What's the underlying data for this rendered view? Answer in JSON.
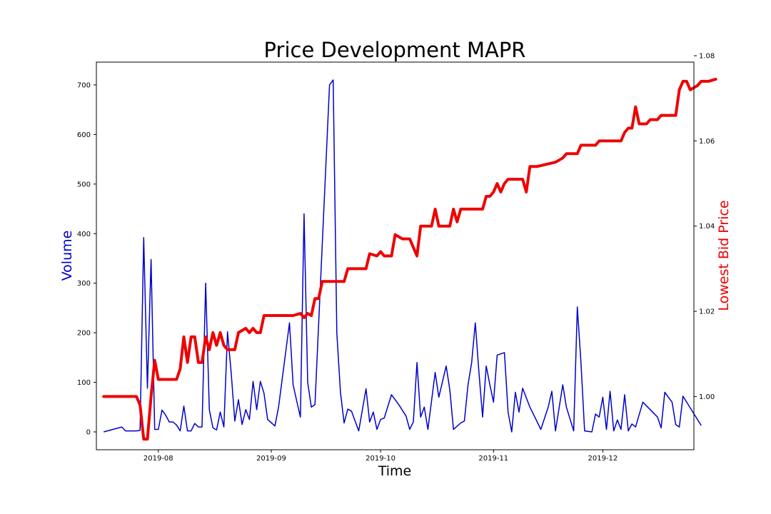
{
  "chart_data": {
    "type": "line",
    "title": "Price Development MAPR",
    "xlabel": "Time",
    "ylabel_left": "Volume",
    "ylabel_right": "Lowest Bid Price",
    "grid": false,
    "x_range": [
      "2019-07-15",
      "2019-12-26"
    ],
    "x_ticks": [
      "2019-08",
      "2019-09",
      "2019-10",
      "2019-11",
      "2019-12"
    ],
    "y_left": {
      "lim": [
        -36,
        746
      ],
      "ticks": [
        0,
        100,
        200,
        300,
        400,
        500,
        600,
        700
      ]
    },
    "y_right": {
      "lim": [
        0.9875,
        1.0785
      ],
      "ticks": [
        1.0,
        1.02,
        1.04,
        1.06,
        1.08
      ],
      "tick_labels": [
        "1.00",
        "1.02",
        "1.04",
        "1.06",
        "1.08"
      ]
    },
    "series": [
      {
        "name": "Volume",
        "axis": "left",
        "color": "#0000cc",
        "points": [
          [
            "2019-07-17",
            0
          ],
          [
            "2019-07-22",
            10
          ],
          [
            "2019-07-23",
            2
          ],
          [
            "2019-07-26",
            2
          ],
          [
            "2019-07-27",
            3
          ],
          [
            "2019-07-28",
            392
          ],
          [
            "2019-07-29",
            88
          ],
          [
            "2019-07-30",
            348
          ],
          [
            "2019-07-31",
            5
          ],
          [
            "2019-08-01",
            5
          ],
          [
            "2019-08-02",
            44
          ],
          [
            "2019-08-03",
            34
          ],
          [
            "2019-08-04",
            20
          ],
          [
            "2019-08-05",
            20
          ],
          [
            "2019-08-06",
            14
          ],
          [
            "2019-08-07",
            2
          ],
          [
            "2019-08-08",
            52
          ],
          [
            "2019-08-09",
            2
          ],
          [
            "2019-08-10",
            2
          ],
          [
            "2019-08-11",
            17
          ],
          [
            "2019-08-12",
            10
          ],
          [
            "2019-08-13",
            10
          ],
          [
            "2019-08-14",
            300
          ],
          [
            "2019-08-15",
            45
          ],
          [
            "2019-08-16",
            8
          ],
          [
            "2019-08-17",
            4
          ],
          [
            "2019-08-18",
            40
          ],
          [
            "2019-08-19",
            10
          ],
          [
            "2019-08-20",
            202
          ],
          [
            "2019-08-21",
            120
          ],
          [
            "2019-08-22",
            22
          ],
          [
            "2019-08-23",
            65
          ],
          [
            "2019-08-24",
            15
          ],
          [
            "2019-08-25",
            45
          ],
          [
            "2019-08-26",
            25
          ],
          [
            "2019-08-27",
            102
          ],
          [
            "2019-08-28",
            45
          ],
          [
            "2019-08-29",
            102
          ],
          [
            "2019-08-30",
            78
          ],
          [
            "2019-08-31",
            25
          ],
          [
            "2019-09-02",
            12
          ],
          [
            "2019-09-03",
            50
          ],
          [
            "2019-09-06",
            220
          ],
          [
            "2019-09-07",
            95
          ],
          [
            "2019-09-08",
            62
          ],
          [
            "2019-09-09",
            30
          ],
          [
            "2019-09-10",
            440
          ],
          [
            "2019-09-11",
            100
          ],
          [
            "2019-09-12",
            50
          ],
          [
            "2019-09-13",
            55
          ],
          [
            "2019-09-17",
            700
          ],
          [
            "2019-09-18",
            710
          ],
          [
            "2019-09-19",
            200
          ],
          [
            "2019-09-20",
            80
          ],
          [
            "2019-09-21",
            18
          ],
          [
            "2019-09-22",
            46
          ],
          [
            "2019-09-23",
            42
          ],
          [
            "2019-09-25",
            2
          ],
          [
            "2019-09-27",
            87
          ],
          [
            "2019-09-28",
            20
          ],
          [
            "2019-09-29",
            40
          ],
          [
            "2019-09-30",
            5
          ],
          [
            "2019-10-01",
            25
          ],
          [
            "2019-10-02",
            28
          ],
          [
            "2019-10-04",
            75
          ],
          [
            "2019-10-06",
            55
          ],
          [
            "2019-10-08",
            32
          ],
          [
            "2019-10-09",
            5
          ],
          [
            "2019-10-10",
            20
          ],
          [
            "2019-10-11",
            140
          ],
          [
            "2019-10-12",
            30
          ],
          [
            "2019-10-13",
            50
          ],
          [
            "2019-10-14",
            5
          ],
          [
            "2019-10-16",
            120
          ],
          [
            "2019-10-17",
            70
          ],
          [
            "2019-10-19",
            133
          ],
          [
            "2019-10-20",
            85
          ],
          [
            "2019-10-21",
            5
          ],
          [
            "2019-10-23",
            18
          ],
          [
            "2019-10-24",
            22
          ],
          [
            "2019-10-25",
            95
          ],
          [
            "2019-10-26",
            140
          ],
          [
            "2019-10-27",
            220
          ],
          [
            "2019-10-28",
            120
          ],
          [
            "2019-10-29",
            30
          ],
          [
            "2019-10-30",
            133
          ],
          [
            "2019-10-31",
            95
          ],
          [
            "2019-11-01",
            60
          ],
          [
            "2019-11-02",
            155
          ],
          [
            "2019-11-04",
            160
          ],
          [
            "2019-11-05",
            40
          ],
          [
            "2019-11-06",
            0
          ],
          [
            "2019-11-07",
            80
          ],
          [
            "2019-11-08",
            40
          ],
          [
            "2019-11-09",
            88
          ],
          [
            "2019-11-11",
            50
          ],
          [
            "2019-11-14",
            5
          ],
          [
            "2019-11-16",
            50
          ],
          [
            "2019-11-17",
            82
          ],
          [
            "2019-11-18",
            2
          ],
          [
            "2019-11-20",
            95
          ],
          [
            "2019-11-21",
            50
          ],
          [
            "2019-11-23",
            2
          ],
          [
            "2019-11-24",
            252
          ],
          [
            "2019-11-25",
            140
          ],
          [
            "2019-11-26",
            2
          ],
          [
            "2019-11-28",
            0
          ],
          [
            "2019-11-29",
            36
          ],
          [
            "2019-11-30",
            30
          ],
          [
            "2019-12-01",
            70
          ],
          [
            "2019-12-02",
            5
          ],
          [
            "2019-12-03",
            82
          ],
          [
            "2019-12-04",
            2
          ],
          [
            "2019-12-05",
            24
          ],
          [
            "2019-12-06",
            5
          ],
          [
            "2019-12-07",
            75
          ],
          [
            "2019-12-08",
            2
          ],
          [
            "2019-12-09",
            16
          ],
          [
            "2019-12-10",
            10
          ],
          [
            "2019-12-12",
            60
          ],
          [
            "2019-12-16",
            30
          ],
          [
            "2019-12-17",
            8
          ],
          [
            "2019-12-18",
            80
          ],
          [
            "2019-12-20",
            60
          ],
          [
            "2019-12-21",
            15
          ],
          [
            "2019-12-22",
            10
          ],
          [
            "2019-12-23",
            72
          ],
          [
            "2019-12-28",
            13
          ]
        ]
      },
      {
        "name": "Lowest Bid Price",
        "axis": "right",
        "color": "#ee0000",
        "points": [
          [
            "2019-07-17",
            1.0
          ],
          [
            "2019-07-25",
            1.0
          ],
          [
            "2019-07-26",
            1.0
          ],
          [
            "2019-07-27",
            0.998
          ],
          [
            "2019-07-28",
            0.99
          ],
          [
            "2019-07-29",
            0.99
          ],
          [
            "2019-07-30",
            1.0
          ],
          [
            "2019-07-31",
            1.0085
          ],
          [
            "2019-08-01",
            1.004
          ],
          [
            "2019-08-06",
            1.004
          ],
          [
            "2019-08-07",
            1.0065
          ],
          [
            "2019-08-08",
            1.014
          ],
          [
            "2019-08-09",
            1.008
          ],
          [
            "2019-08-10",
            1.014
          ],
          [
            "2019-08-11",
            1.014
          ],
          [
            "2019-08-12",
            1.008
          ],
          [
            "2019-08-13",
            1.008
          ],
          [
            "2019-08-14",
            1.014
          ],
          [
            "2019-08-15",
            1.011
          ],
          [
            "2019-08-16",
            1.015
          ],
          [
            "2019-08-17",
            1.012
          ],
          [
            "2019-08-18",
            1.015
          ],
          [
            "2019-08-19",
            1.012
          ],
          [
            "2019-08-20",
            1.011
          ],
          [
            "2019-08-22",
            1.011
          ],
          [
            "2019-08-23",
            1.015
          ],
          [
            "2019-08-25",
            1.016
          ],
          [
            "2019-08-26",
            1.015
          ],
          [
            "2019-08-27",
            1.016
          ],
          [
            "2019-08-28",
            1.015
          ],
          [
            "2019-08-29",
            1.015
          ],
          [
            "2019-08-30",
            1.019
          ],
          [
            "2019-09-07",
            1.019
          ],
          [
            "2019-09-09",
            1.0195
          ],
          [
            "2019-09-10",
            1.0185
          ],
          [
            "2019-09-11",
            1.0195
          ],
          [
            "2019-09-12",
            1.019
          ],
          [
            "2019-09-13",
            1.023
          ],
          [
            "2019-09-14",
            1.023
          ],
          [
            "2019-09-15",
            1.027
          ],
          [
            "2019-09-21",
            1.027
          ],
          [
            "2019-09-22",
            1.03
          ],
          [
            "2019-09-27",
            1.03
          ],
          [
            "2019-09-28",
            1.0335
          ],
          [
            "2019-09-30",
            1.033
          ],
          [
            "2019-10-01",
            1.034
          ],
          [
            "2019-10-02",
            1.033
          ],
          [
            "2019-10-04",
            1.033
          ],
          [
            "2019-10-05",
            1.038
          ],
          [
            "2019-10-07",
            1.037
          ],
          [
            "2019-10-09",
            1.037
          ],
          [
            "2019-10-11",
            1.033
          ],
          [
            "2019-10-12",
            1.04
          ],
          [
            "2019-10-15",
            1.04
          ],
          [
            "2019-10-16",
            1.044
          ],
          [
            "2019-10-17",
            1.04
          ],
          [
            "2019-10-20",
            1.04
          ],
          [
            "2019-10-21",
            1.044
          ],
          [
            "2019-10-22",
            1.041
          ],
          [
            "2019-10-23",
            1.044
          ],
          [
            "2019-10-25",
            1.044
          ],
          [
            "2019-10-26",
            1.044
          ],
          [
            "2019-10-29",
            1.044
          ],
          [
            "2019-10-30",
            1.047
          ],
          [
            "2019-10-31",
            1.047
          ],
          [
            "2019-11-01",
            1.048
          ],
          [
            "2019-11-02",
            1.05
          ],
          [
            "2019-11-03",
            1.048
          ],
          [
            "2019-11-04",
            1.05
          ],
          [
            "2019-11-05",
            1.051
          ],
          [
            "2019-11-09",
            1.051
          ],
          [
            "2019-11-10",
            1.048
          ],
          [
            "2019-11-11",
            1.054
          ],
          [
            "2019-11-13",
            1.054
          ],
          [
            "2019-11-18",
            1.055
          ],
          [
            "2019-11-20",
            1.056
          ],
          [
            "2019-11-21",
            1.057
          ],
          [
            "2019-11-24",
            1.057
          ],
          [
            "2019-11-25",
            1.059
          ],
          [
            "2019-11-29",
            1.059
          ],
          [
            "2019-11-30",
            1.06
          ],
          [
            "2019-12-06",
            1.06
          ],
          [
            "2019-12-07",
            1.062
          ],
          [
            "2019-12-08",
            1.063
          ],
          [
            "2019-12-09",
            1.063
          ],
          [
            "2019-12-10",
            1.068
          ],
          [
            "2019-12-11",
            1.064
          ],
          [
            "2019-12-13",
            1.064
          ],
          [
            "2019-12-14",
            1.065
          ],
          [
            "2019-12-16",
            1.065
          ],
          [
            "2019-12-17",
            1.066
          ],
          [
            "2019-12-21",
            1.066
          ],
          [
            "2019-12-22",
            1.072
          ],
          [
            "2019-12-23",
            1.074
          ],
          [
            "2019-12-24",
            1.074
          ],
          [
            "2019-12-25",
            1.072
          ],
          [
            "2019-12-27",
            1.073
          ],
          [
            "2019-12-28",
            1.074
          ],
          [
            "2019-12-30",
            1.074
          ],
          [
            "2020-01-01",
            1.0745
          ]
        ]
      }
    ]
  }
}
